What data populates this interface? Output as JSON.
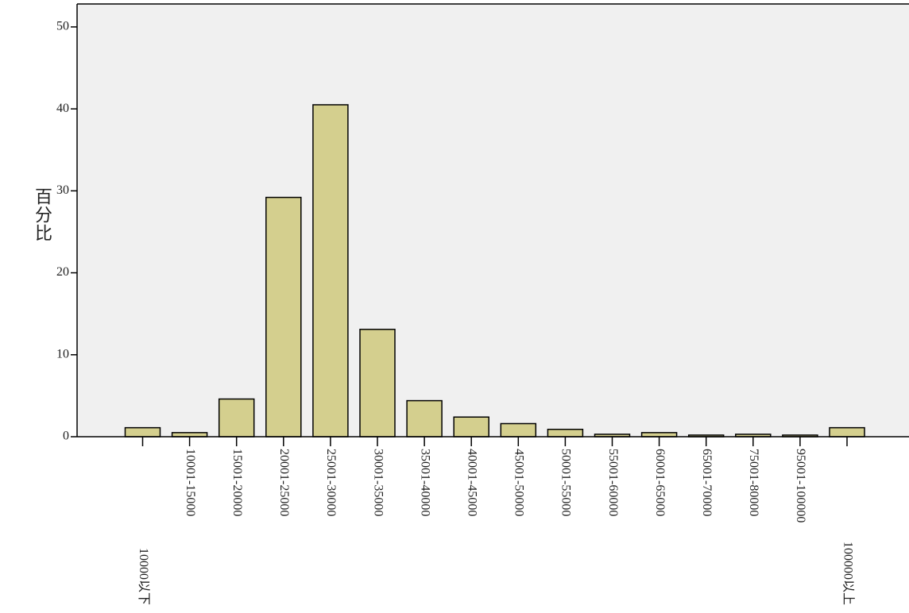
{
  "chart_data": {
    "type": "bar",
    "y_label": "百分比",
    "categories": [
      "10000以下",
      "10001-15000",
      "15001-20000",
      "20001-25000",
      "25001-30000",
      "30001-35000",
      "35001-40000",
      "40001-45000",
      "45001-50000",
      "50001-55000",
      "55001-60000",
      "60001-65000",
      "65001-70000",
      "75001-80000",
      "95001-100000",
      "100000以上"
    ],
    "values": [
      1.1,
      0.5,
      4.6,
      29.2,
      40.5,
      13.1,
      4.4,
      2.4,
      1.6,
      0.9,
      0.3,
      0.5,
      0.2,
      0.3,
      0.2,
      1.1
    ],
    "color": "#d4cf8e",
    "ylim": [
      0,
      52.8
    ],
    "yticks": [
      0,
      10,
      20,
      30,
      40,
      50
    ]
  }
}
